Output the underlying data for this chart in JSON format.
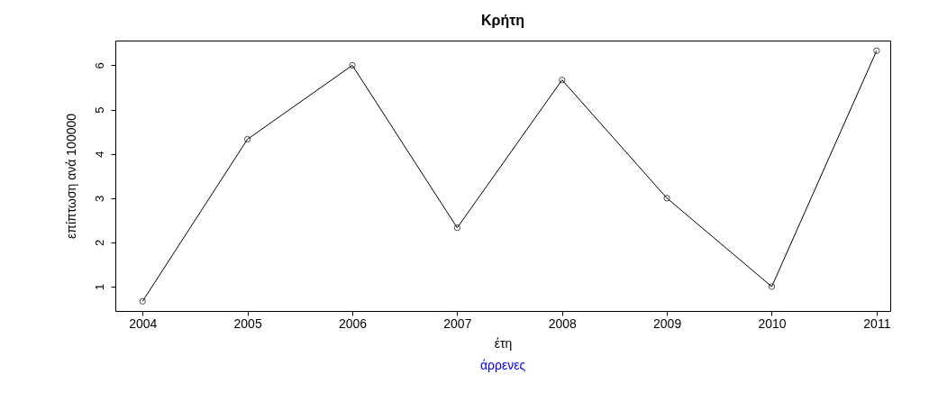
{
  "chart_data": {
    "type": "line",
    "title": "Κρήτη",
    "xlabel": "έτη",
    "ylabel": "επίπτωση ανά 100000",
    "annotations": [
      "άρρενες"
    ],
    "x": [
      2004,
      2005,
      2006,
      2007,
      2008,
      2009,
      2010,
      2011
    ],
    "series": [
      {
        "color": "#000000",
        "values": [
          0.67,
          4.33,
          6,
          2.33,
          5.67,
          3,
          1,
          6.33
        ]
      }
    ],
    "xlim": [
      2003.74,
      2011.13
    ],
    "xticks": [
      2004,
      2005,
      2006,
      2007,
      2008,
      2009,
      2010,
      2011
    ],
    "ylim": [
      0.45,
      6.56
    ],
    "yticks": [
      1,
      2,
      3,
      4,
      5,
      6
    ],
    "marker": "circle",
    "line_style": "solid",
    "grid": false
  }
}
